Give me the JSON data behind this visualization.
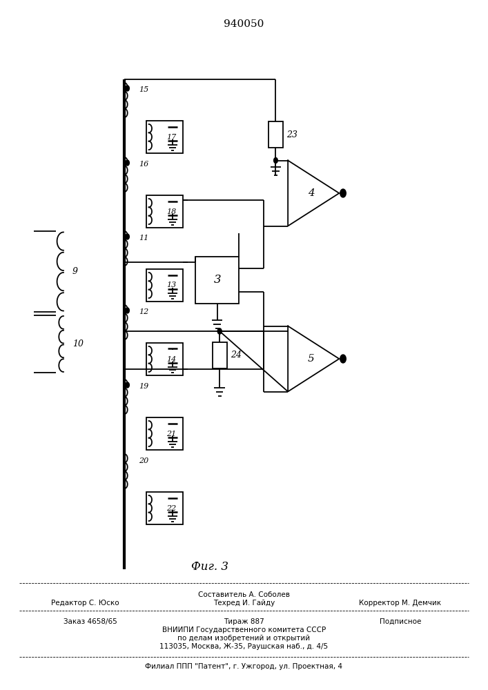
{
  "title": "940050",
  "fig_label": "Фиг. 3",
  "background_color": "#ffffff",
  "line_color": "#000000",
  "lw": 1.3,
  "lw_thick": 3.0,
  "footer": [
    {
      "text": "Составитель А. Соболев",
      "xf": 0.5,
      "yf": 0.138,
      "fs": 7.5,
      "ha": "center"
    },
    {
      "text": "Редактор С. Юско",
      "xf": 0.175,
      "yf": 0.126,
      "fs": 7.5,
      "ha": "center"
    },
    {
      "text": "Техред И. Гайду",
      "xf": 0.5,
      "yf": 0.126,
      "fs": 7.5,
      "ha": "center"
    },
    {
      "text": "Корректор М. Демчик",
      "xf": 0.82,
      "yf": 0.126,
      "fs": 7.5,
      "ha": "center"
    },
    {
      "text": "Заказ 4658/65",
      "xf": 0.13,
      "yf": 0.099,
      "fs": 7.5,
      "ha": "left"
    },
    {
      "text": "Тираж 887",
      "xf": 0.5,
      "yf": 0.099,
      "fs": 7.5,
      "ha": "center"
    },
    {
      "text": "Подписное",
      "xf": 0.82,
      "yf": 0.099,
      "fs": 7.5,
      "ha": "center"
    },
    {
      "text": "ВНИИПИ Государственного комитета СССР",
      "xf": 0.5,
      "yf": 0.087,
      "fs": 7.5,
      "ha": "center"
    },
    {
      "text": "по делам изобретений и открытий",
      "xf": 0.5,
      "yf": 0.075,
      "fs": 7.5,
      "ha": "center"
    },
    {
      "text": "113035, Москва, Ж-35, Раушская наб., д. 4/5",
      "xf": 0.5,
      "yf": 0.063,
      "fs": 7.5,
      "ha": "center"
    },
    {
      "text": "Филиал ППП \"Патент\", г. Ужгород, ул. Проектная, 4",
      "xf": 0.5,
      "yf": 0.034,
      "fs": 7.5,
      "ha": "center"
    }
  ]
}
